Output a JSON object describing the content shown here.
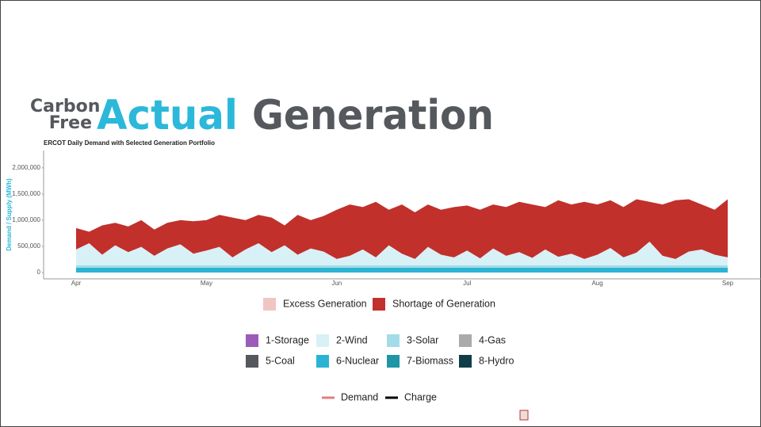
{
  "header": {
    "line1": "Carbon",
    "line2": "Free",
    "accent": "Actual",
    "main": "Generation"
  },
  "chart_data": {
    "type": "area",
    "stacked": true,
    "title": "ERCOT Daily Demand with Selected Generation Portfolio",
    "ylabel": "Demand / Supply (MWh)",
    "categories": [
      "Apr",
      null,
      null,
      null,
      null,
      null,
      null,
      null,
      null,
      null,
      "May",
      null,
      null,
      null,
      null,
      null,
      null,
      null,
      null,
      null,
      "Jun",
      null,
      null,
      null,
      null,
      null,
      null,
      null,
      null,
      null,
      "Jul",
      null,
      null,
      null,
      null,
      null,
      null,
      null,
      null,
      null,
      "Aug",
      null,
      null,
      null,
      null,
      null,
      null,
      null,
      null,
      null,
      "Sep"
    ],
    "series": [
      {
        "name": "6-Nuclear",
        "color": "#2ab3d3",
        "values": [
          90000,
          90000,
          90000,
          90000,
          90000,
          90000,
          90000,
          90000,
          90000,
          90000,
          90000,
          90000,
          90000,
          90000,
          90000,
          90000,
          90000,
          90000,
          90000,
          90000,
          90000,
          90000,
          90000,
          90000,
          90000,
          90000,
          90000,
          90000,
          90000,
          90000,
          90000,
          90000,
          90000,
          90000,
          90000,
          90000,
          90000,
          90000,
          90000,
          90000,
          90000,
          90000,
          90000,
          90000,
          90000,
          90000,
          90000,
          90000,
          90000,
          90000,
          90000
        ]
      },
      {
        "name": "3-Solar",
        "color": "#a3dce8",
        "values": [
          50000,
          50000,
          50000,
          50000,
          50000,
          50000,
          50000,
          50000,
          50000,
          50000,
          50000,
          50000,
          50000,
          50000,
          50000,
          50000,
          50000,
          50000,
          50000,
          50000,
          50000,
          50000,
          50000,
          50000,
          50000,
          50000,
          50000,
          50000,
          50000,
          50000,
          50000,
          50000,
          50000,
          50000,
          50000,
          50000,
          50000,
          50000,
          50000,
          50000,
          50000,
          50000,
          50000,
          50000,
          50000,
          50000,
          50000,
          50000,
          50000,
          50000,
          50000
        ]
      },
      {
        "name": "2-Wind",
        "color": "#d8f1f7",
        "values": [
          300000,
          420000,
          200000,
          380000,
          250000,
          350000,
          180000,
          320000,
          400000,
          220000,
          280000,
          350000,
          150000,
          300000,
          420000,
          250000,
          380000,
          200000,
          320000,
          260000,
          120000,
          180000,
          300000,
          150000,
          380000,
          220000,
          120000,
          350000,
          200000,
          150000,
          280000,
          130000,
          320000,
          180000,
          250000,
          140000,
          300000,
          160000,
          220000,
          120000,
          200000,
          330000,
          150000,
          240000,
          450000,
          180000,
          120000,
          260000,
          300000,
          200000,
          150000
        ]
      },
      {
        "name": "Shortage of Generation",
        "color": "#c1302b",
        "values": [
          410000,
          220000,
          560000,
          430000,
          490000,
          510000,
          500000,
          490000,
          460000,
          620000,
          580000,
          610000,
          760000,
          560000,
          540000,
          660000,
          380000,
          760000,
          540000,
          680000,
          940000,
          980000,
          810000,
          1060000,
          680000,
          940000,
          890000,
          810000,
          860000,
          960000,
          860000,
          930000,
          840000,
          930000,
          960000,
          1020000,
          810000,
          1080000,
          940000,
          1090000,
          960000,
          910000,
          960000,
          1020000,
          760000,
          980000,
          1120000,
          1000000,
          860000,
          860000,
          1110000
        ]
      }
    ],
    "ylim": [
      0,
      2300000
    ],
    "yticks": [
      0,
      {
        "value": 500000,
        "label": "500,000"
      },
      {
        "value": 1000000,
        "label": "1,000,000"
      },
      {
        "value": 1500000,
        "label": "1,500,000"
      },
      {
        "value": 2000000,
        "label": "2,000,000"
      }
    ],
    "legend_balance": [
      {
        "name": "Excess Generation",
        "color": "#f0c6c2"
      }
    ],
    "legend_portfolio": [
      {
        "name": "1-Storage",
        "color": "#9b5bb8"
      },
      {
        "name": "4-Gas",
        "color": "#aaaaaa"
      },
      {
        "name": "5-Coal",
        "color": "#55585d"
      },
      {
        "name": "7-Biomass",
        "color": "#1f95a6"
      },
      {
        "name": "8-Hydro",
        "color": "#0f3d48"
      }
    ],
    "legend_lines": [
      {
        "name": "Demand",
        "color": "#e07f7f"
      },
      {
        "name": "Charge",
        "color": "#000000"
      }
    ]
  }
}
